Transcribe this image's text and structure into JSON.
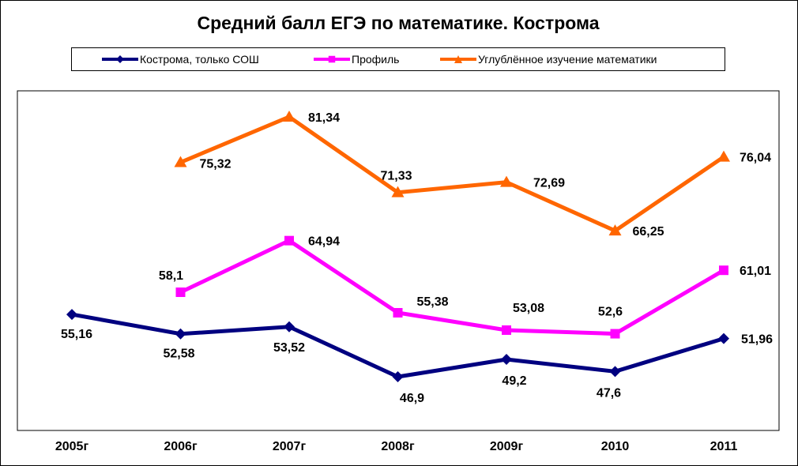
{
  "chart_data": {
    "type": "line",
    "title": "Средний балл ЕГЭ по математике. Кострома",
    "categories": [
      "2005г",
      "2006г",
      "2007г",
      "2008г",
      "2009г",
      "2010",
      "2011"
    ],
    "legend_position": "top",
    "grid": false,
    "series": [
      {
        "name": "Кострома, только СОШ",
        "color": "#000080",
        "marker": "diamond",
        "values": [
          55.16,
          52.58,
          53.52,
          46.9,
          49.2,
          47.6,
          51.96
        ],
        "labels": [
          "55,16",
          "52,58",
          "53,52",
          "46,9",
          "49,2",
          "47,6",
          "51,96"
        ]
      },
      {
        "name": "Профиль",
        "color": "#ff00ff",
        "marker": "square",
        "values": [
          null,
          58.1,
          64.94,
          55.38,
          53.08,
          52.6,
          61.01
        ],
        "labels": [
          "",
          "58,1",
          "64,94",
          "55,38",
          "53,08",
          "52,6",
          "61,01"
        ]
      },
      {
        "name": "Углублённое изучение математики",
        "color": "#ff6600",
        "marker": "triangle",
        "values": [
          null,
          75.32,
          81.34,
          71.33,
          72.69,
          66.25,
          76.04
        ],
        "labels": [
          "",
          "75,32",
          "81,34",
          "71,33",
          "72,69",
          "66,25",
          "76,04"
        ]
      }
    ]
  }
}
